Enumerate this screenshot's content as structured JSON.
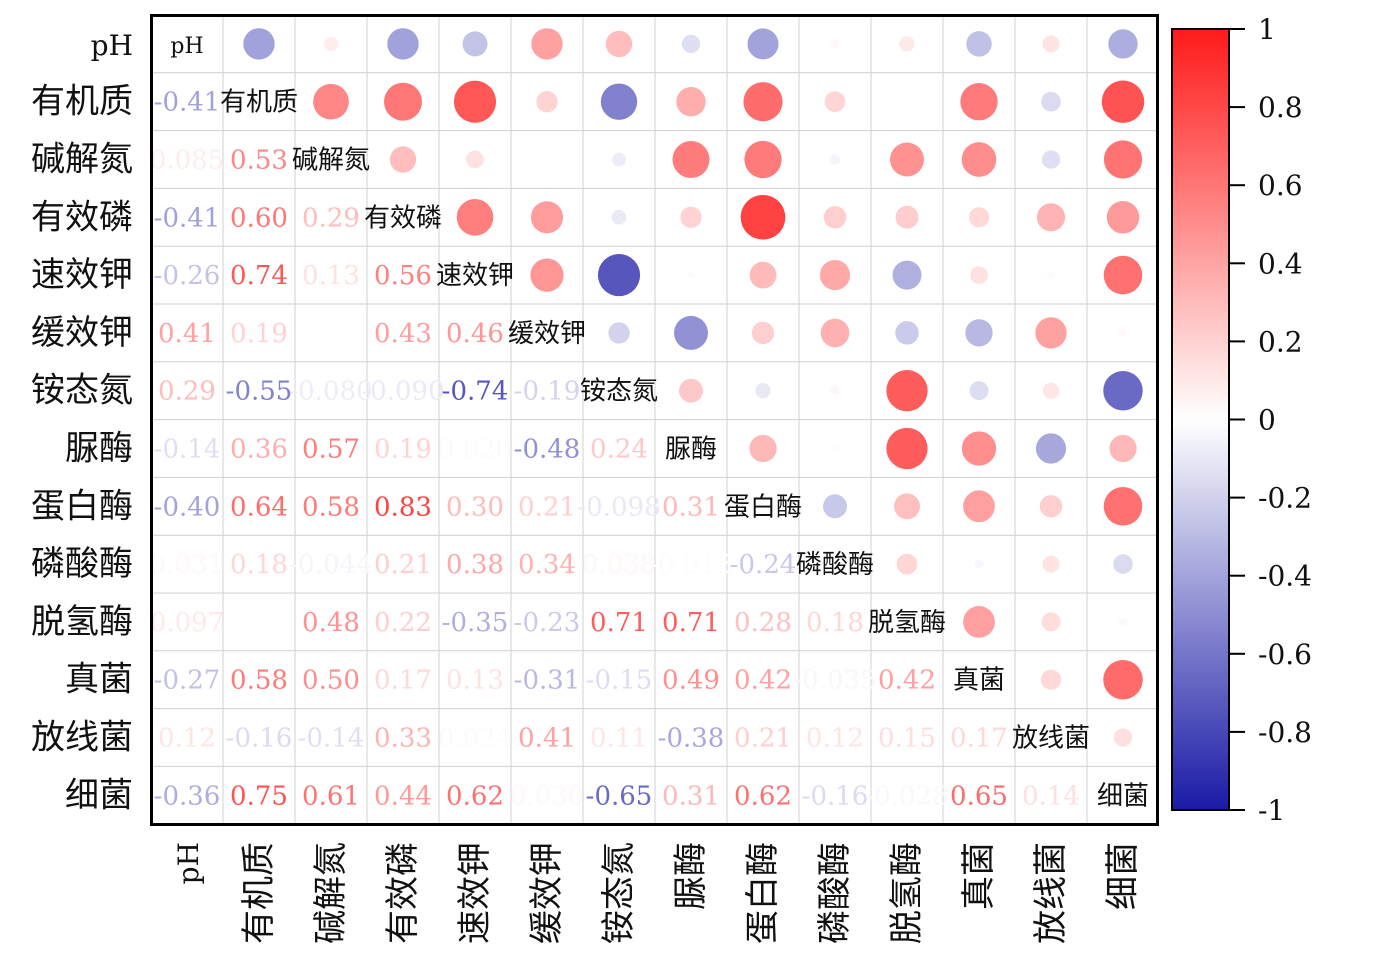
{
  "chart_data": {
    "type": "heatmap",
    "variables": [
      "pH",
      "有机质",
      "碱解氮",
      "有效磷",
      "速效钾",
      "缓效钾",
      "铵态氮",
      "脲酶",
      "蛋白酶",
      "磷酸酶",
      "脱氢酶",
      "真菌",
      "放线菌",
      "细菌"
    ],
    "lower_labels": [
      [],
      [
        "-0.41"
      ],
      [
        "0.085",
        "0.53"
      ],
      [
        "-0.41",
        "0.60",
        "0.29"
      ],
      [
        "-0.26",
        "0.74",
        "0.13",
        "0.56"
      ],
      [
        "0.41",
        "0.19",
        "0.0",
        "0.43",
        "0.46"
      ],
      [
        "0.29",
        "-0.55",
        "-0.080",
        "-0.090",
        "-0.74",
        "-0.19"
      ],
      [
        "-0.14",
        "0.36",
        "0.57",
        "0.19",
        "0.020",
        "-0.48",
        "0.24"
      ],
      [
        "-0.40",
        "0.64",
        "0.58",
        "0.83",
        "0.30",
        "0.21",
        "-0.098",
        "0.31"
      ],
      [
        "0.031",
        "0.18",
        "-0.044",
        "0.21",
        "0.38",
        "0.34",
        "0.038",
        "-0.015",
        "-0.24"
      ],
      [
        "0.097",
        "0.0",
        "0.48",
        "0.22",
        "-0.35",
        "-0.23",
        "0.71",
        "0.71",
        "0.28",
        "0.18"
      ],
      [
        "-0.27",
        "0.58",
        "0.50",
        "0.17",
        "0.13",
        "-0.31",
        "-0.15",
        "0.49",
        "0.42",
        "-0.035",
        "0.42"
      ],
      [
        "0.12",
        "-0.16",
        "-0.14",
        "0.33",
        "0.024",
        "0.41",
        "0.11",
        "-0.38",
        "0.21",
        "0.12",
        "0.15",
        "0.17"
      ],
      [
        "-0.36",
        "0.75",
        "0.61",
        "0.44",
        "0.62",
        "0.030",
        "-0.65",
        "0.31",
        "0.62",
        "-0.16",
        "-0.028",
        "0.65",
        "0.14"
      ]
    ],
    "colorbar": {
      "range": [
        -1,
        1
      ],
      "ticks": [
        "1",
        "0.8",
        "0.6",
        "0.4",
        "0.2",
        "0",
        "-0.2",
        "-0.4",
        "-0.6",
        "-0.8",
        "-1"
      ],
      "colors": {
        "negative": "#1a1aa6",
        "zero": "#ffffff",
        "positive": "#ff1a1a"
      }
    }
  }
}
